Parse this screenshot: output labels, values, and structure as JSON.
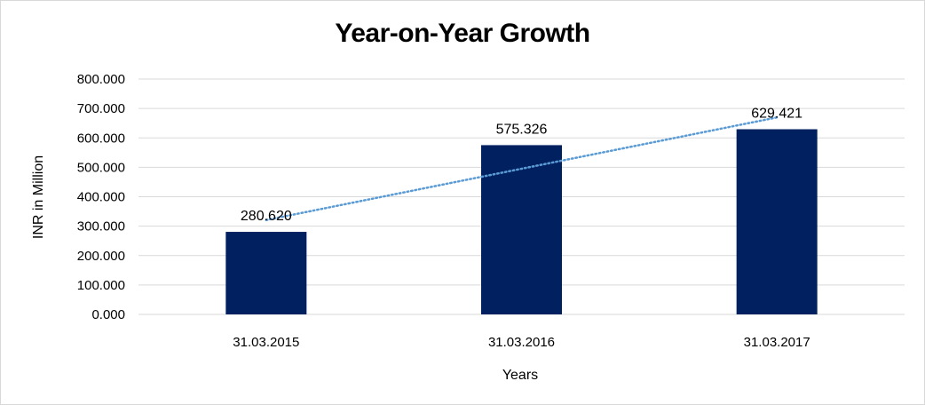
{
  "chart_data": {
    "type": "bar",
    "title": "Year-on-Year Growth",
    "xlabel": "Years",
    "ylabel": "INR in Million",
    "categories": [
      "31.03.2015",
      "31.03.2016",
      "31.03.2017"
    ],
    "values": [
      280.62,
      575.326,
      629.421
    ],
    "data_labels": [
      "280.620",
      "575.326",
      "629.421"
    ],
    "ylim": [
      0,
      800
    ],
    "yticks": [
      0,
      100,
      200,
      300,
      400,
      500,
      600,
      700,
      800
    ],
    "ytick_labels": [
      "0.000",
      "100.000",
      "200.000",
      "300.000",
      "400.000",
      "500.000",
      "600.000",
      "700.000",
      "800.000"
    ],
    "grid": true,
    "legend": "none",
    "trendline": {
      "type": "linear",
      "style": "dotted"
    },
    "colors": {
      "bar": "#002060",
      "trendline": "#5b9bd5",
      "grid": "#d9d9d9"
    }
  }
}
